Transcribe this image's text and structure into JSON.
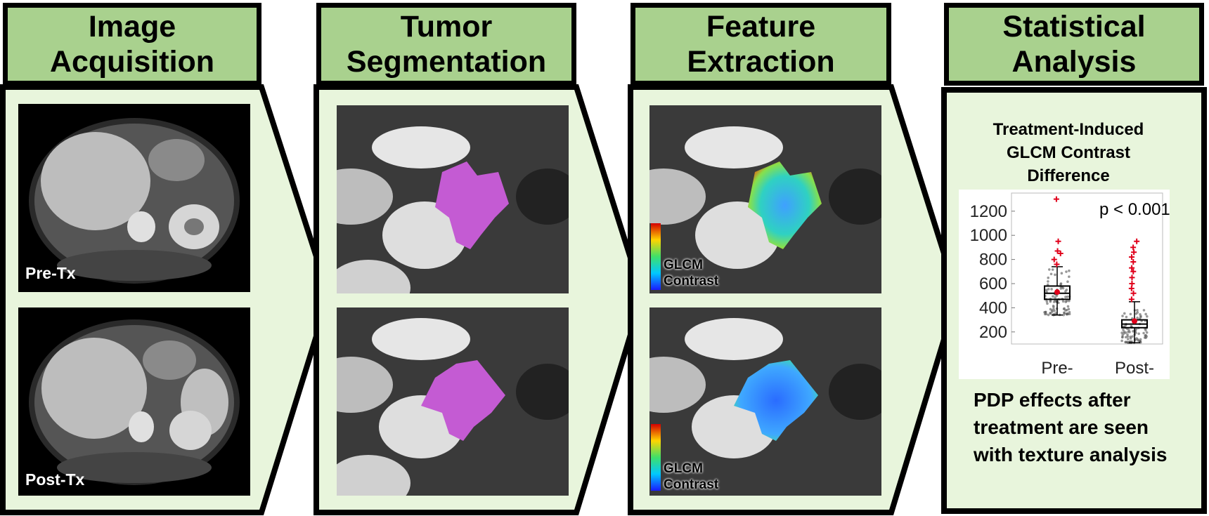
{
  "panels": [
    {
      "title": "Image\nAcquisition"
    },
    {
      "title": "Tumor\nSegmentation"
    },
    {
      "title": "Feature\nExtraction"
    },
    {
      "title": "Statistical\nAnalysis"
    }
  ],
  "acquisition": {
    "pre_label": "Pre-Tx",
    "post_label": "Post-Tx"
  },
  "feature": {
    "colorbar_label": "GLCM\nContrast"
  },
  "statistical": {
    "plot_title": "Treatment-Induced\nGLCM Contrast\nDifference",
    "p_value": "p < 0.001",
    "conclusion": "PDP effects after\ntreatment are seen\nwith texture analysis"
  },
  "colors": {
    "header": "#a9d18e",
    "panel": "#e8f5dc",
    "segmentation": "#c45bd3",
    "outlier": "#e0001b"
  },
  "chart_data": {
    "type": "box",
    "categories": [
      "Pre-",
      "Post-"
    ],
    "yticks": [
      200,
      400,
      600,
      800,
      1000,
      1200
    ],
    "ylim": [
      100,
      1350
    ],
    "boxes": [
      {
        "category": "Pre-",
        "q1": 470,
        "median": 520,
        "q3": 580,
        "mean": 530,
        "whisker_low": 340,
        "whisker_high": 740,
        "outliers": [
          760,
          800,
          850,
          870,
          950,
          1300
        ]
      },
      {
        "category": "Post-",
        "q1": 235,
        "median": 265,
        "q3": 300,
        "mean": 290,
        "whisker_low": 110,
        "whisker_high": 450,
        "outliers": [
          470,
          520,
          560,
          600,
          650,
          700,
          730,
          780,
          820,
          860,
          900,
          950
        ]
      }
    ],
    "title": "Treatment-Induced GLCM Contrast Difference",
    "annotation": "p < 0.001"
  }
}
